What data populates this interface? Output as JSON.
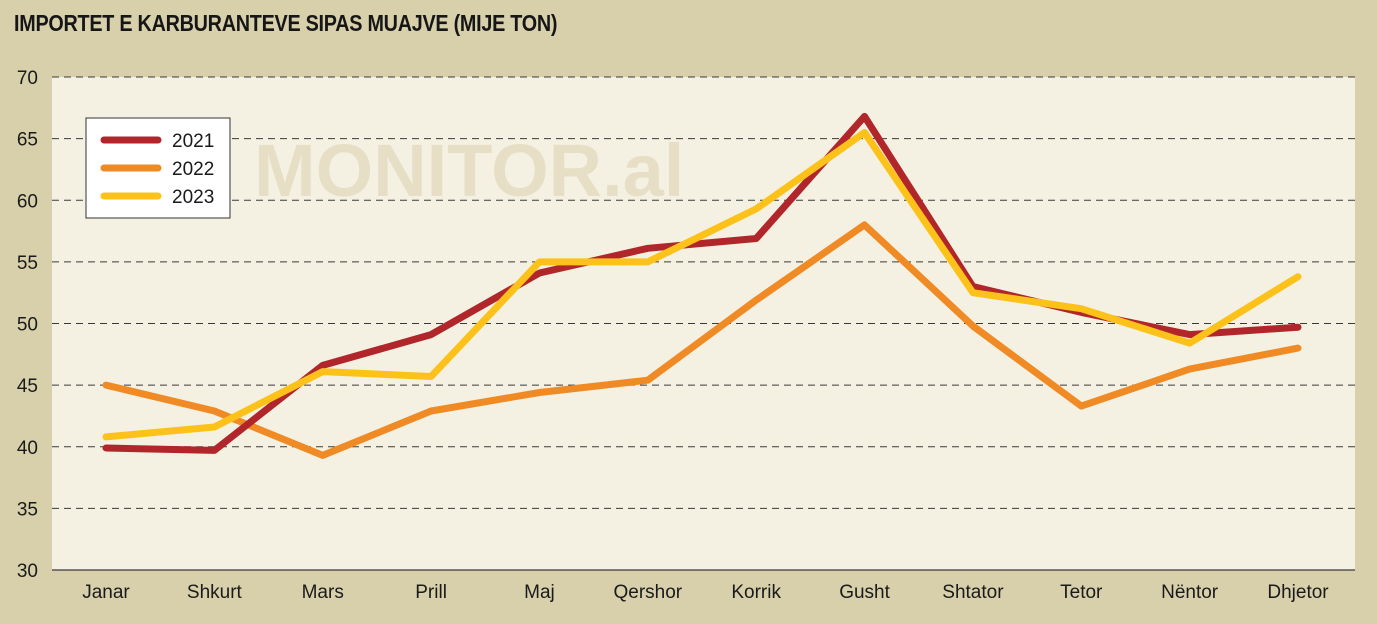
{
  "chart_data": {
    "type": "line",
    "title": "IMPORTET E KARBURANTEVE SIPAS MUAJVE (MIJE TON)",
    "watermark": "MONITOR.al",
    "categories": [
      "Janar",
      "Shkurt",
      "Mars",
      "Prill",
      "Maj",
      "Qershor",
      "Korrik",
      "Gusht",
      "Shtator",
      "Tetor",
      "Nëntor",
      "Dhjetor"
    ],
    "ylim": [
      30,
      70
    ],
    "yticks": [
      30,
      35,
      40,
      45,
      50,
      55,
      60,
      65,
      70
    ],
    "grid": true,
    "legend_position": "top-left",
    "series": [
      {
        "name": "2021",
        "color": "#b1262b",
        "values": [
          39.9,
          39.7,
          46.6,
          49.1,
          54.1,
          56.1,
          56.9,
          66.8,
          53.0,
          50.9,
          49.1,
          49.7
        ]
      },
      {
        "name": "2022",
        "color": "#f08a24",
        "values": [
          45.0,
          42.9,
          39.3,
          42.9,
          44.4,
          45.4,
          51.9,
          58.0,
          49.8,
          43.3,
          46.3,
          48.0
        ]
      },
      {
        "name": "2023",
        "color": "#fcc21a",
        "values": [
          40.8,
          41.6,
          46.1,
          45.7,
          55.0,
          55.0,
          59.3,
          65.5,
          52.5,
          51.2,
          48.4,
          53.8
        ]
      }
    ]
  }
}
